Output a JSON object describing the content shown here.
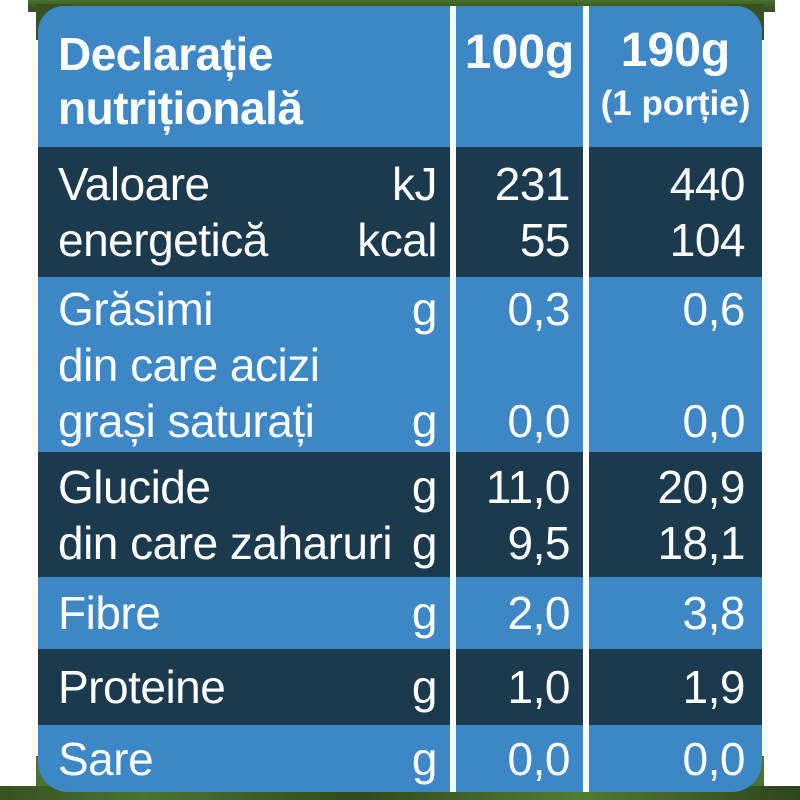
{
  "colors": {
    "row_blue": "#3E87C7",
    "row_dark": "#1C3A4D",
    "separator": "#FFFFFF",
    "text": "#FFFFFF",
    "foliage_green": "#3A5124",
    "grass_green": "#497130"
  },
  "table": {
    "title_line1": "Declarație",
    "title_line2": "nutrițională",
    "columns": {
      "per100g": "100g",
      "portion": "190g",
      "portion_note": "(1 porție)"
    },
    "rows": [
      {
        "name": "energy",
        "shade": "dark",
        "lines": [
          {
            "label": "Valoare",
            "unit": "kJ",
            "v100": "231",
            "vport": "440"
          },
          {
            "label": "energetică",
            "unit": "kcal",
            "v100": "55",
            "vport": "104"
          }
        ]
      },
      {
        "name": "fat",
        "shade": "blue",
        "lines": [
          {
            "label": "Grăsimi",
            "unit": "g",
            "v100": "0,3",
            "vport": "0,6"
          },
          {
            "label": "din care acizi",
            "unit": "",
            "v100": "",
            "vport": ""
          },
          {
            "label": "grași saturați",
            "unit": "g",
            "v100": "0,0",
            "vport": "0,0"
          }
        ]
      },
      {
        "name": "carbohydrate",
        "shade": "dark",
        "lines": [
          {
            "label": "Glucide",
            "unit": "g",
            "v100": "11,0",
            "vport": "20,9"
          },
          {
            "label": "din care zaharuri",
            "unit": "g",
            "v100": "9,5",
            "vport": "18,1"
          }
        ]
      },
      {
        "name": "fibre",
        "shade": "blue",
        "lines": [
          {
            "label": "Fibre",
            "unit": "g",
            "v100": "2,0",
            "vport": "3,8"
          }
        ]
      },
      {
        "name": "protein",
        "shade": "dark",
        "lines": [
          {
            "label": "Proteine",
            "unit": "g",
            "v100": "1,0",
            "vport": "1,9"
          }
        ]
      },
      {
        "name": "salt",
        "shade": "blue",
        "lines": [
          {
            "label": "Sare",
            "unit": "g",
            "v100": "0,0",
            "vport": "0,0"
          }
        ]
      }
    ]
  }
}
